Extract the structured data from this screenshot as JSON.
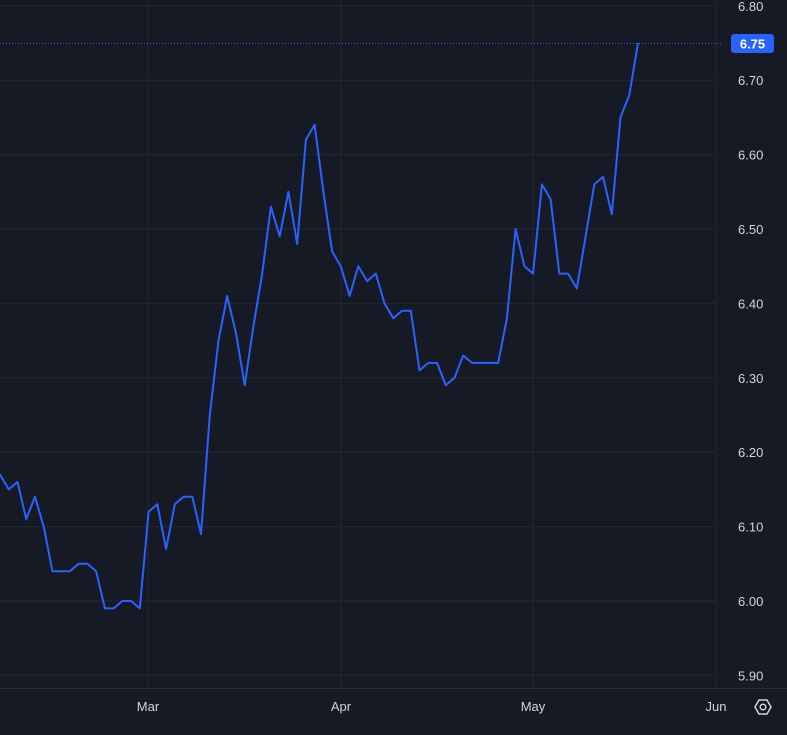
{
  "theme": {
    "background": "#161a25",
    "grid": "#242833",
    "line": "#2962ff",
    "text": "#d1d4dc",
    "label_bg": "#2962ff",
    "label_text": "#ffffff"
  },
  "controls": {
    "settings_icon": "gear-settings-icon"
  },
  "chart_data": {
    "type": "line",
    "title": "",
    "xlabel": "",
    "ylabel": "",
    "grid": true,
    "ylim": [
      5.88,
      6.81
    ],
    "y_ticks": [
      "6.80",
      "6.70",
      "6.60",
      "6.50",
      "6.40",
      "6.30",
      "6.20",
      "6.10",
      "6.00",
      "5.90"
    ],
    "x_ticks": [
      "Mar",
      "Apr",
      "May",
      "Jun"
    ],
    "last_value": "6.75",
    "series": [
      {
        "values": [
          6.17,
          6.15,
          6.16,
          6.11,
          6.14,
          6.1,
          6.04,
          6.04,
          6.04,
          6.05,
          6.05,
          6.04,
          5.99,
          5.99,
          6.0,
          6.0,
          5.99,
          6.12,
          6.13,
          6.07,
          6.13,
          6.14,
          6.14,
          6.09,
          6.25,
          6.35,
          6.41,
          6.36,
          6.29,
          6.37,
          6.44,
          6.53,
          6.49,
          6.55,
          6.48,
          6.62,
          6.64,
          6.55,
          6.47,
          6.45,
          6.41,
          6.45,
          6.43,
          6.44,
          6.4,
          6.38,
          6.39,
          6.39,
          6.31,
          6.32,
          6.32,
          6.29,
          6.3,
          6.33,
          6.32,
          6.32,
          6.32,
          6.32,
          6.38,
          6.5,
          6.45,
          6.44,
          6.56,
          6.54,
          6.44,
          6.44,
          6.42,
          6.49,
          6.56,
          6.57,
          6.52,
          6.65,
          6.68,
          6.75
        ]
      }
    ]
  }
}
